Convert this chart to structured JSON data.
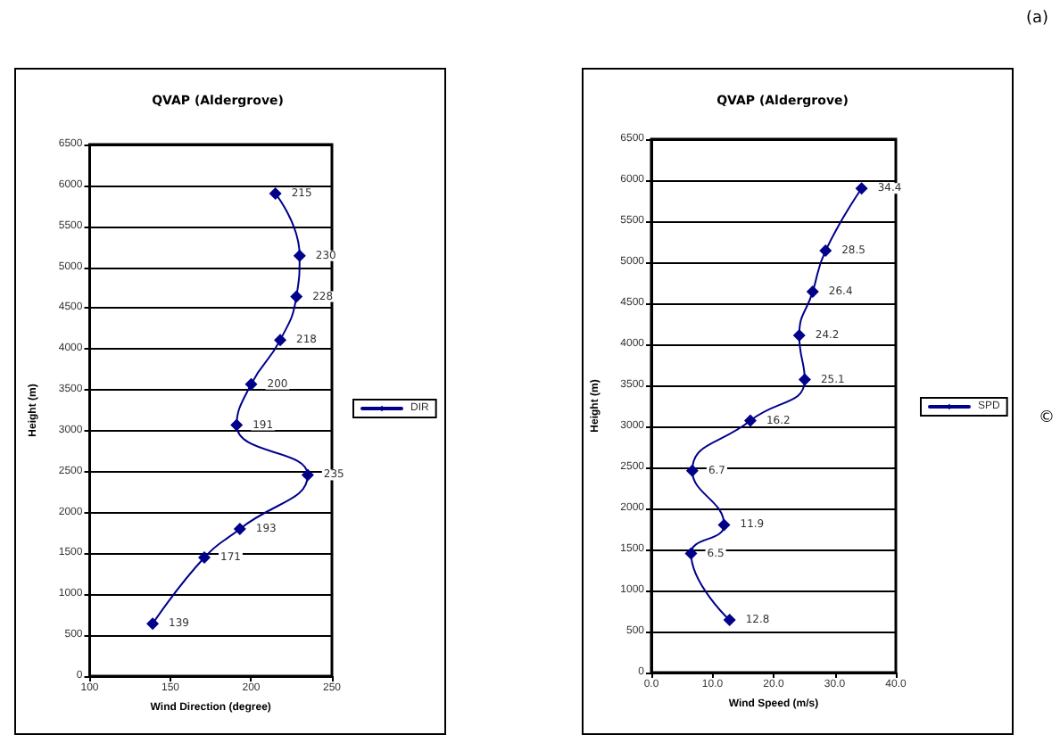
{
  "chart_data": [
    {
      "type": "line",
      "title": "QVAP (Aldergrove)",
      "xlabel": "Wind Direction (degree)",
      "ylabel": "Height (m)",
      "series": [
        {
          "name": "DIR",
          "color": "#00008b",
          "x": [
            139,
            171,
            193,
            235,
            191,
            200,
            218,
            228,
            230,
            215
          ],
          "values": [
            640,
            1450,
            1800,
            2460,
            3070,
            3570,
            4110,
            4640,
            5140,
            5900
          ]
        }
      ],
      "xlim": [
        100,
        250
      ],
      "xticks": [
        100,
        150,
        200,
        250
      ],
      "ylim": [
        0,
        6500
      ],
      "yticks": [
        0,
        500,
        1000,
        1500,
        2000,
        2500,
        3000,
        3500,
        4000,
        4500,
        5000,
        5500,
        6000,
        6500
      ],
      "grid": "y",
      "legend": "right",
      "marker": "diamond",
      "line_style": "solid",
      "annotations": [
        {
          "text": "139",
          "x": 139,
          "y": 640
        },
        {
          "text": "171",
          "x": 171,
          "y": 1450
        },
        {
          "text": "193",
          "x": 193,
          "y": 1800
        },
        {
          "text": "235",
          "x": 235,
          "y": 2460
        },
        {
          "text": "191",
          "x": 191,
          "y": 3070
        },
        {
          "text": "200",
          "x": 200,
          "y": 3570
        },
        {
          "text": "218",
          "x": 218,
          "y": 4110
        },
        {
          "text": "228",
          "x": 228,
          "y": 4640
        },
        {
          "text": "230",
          "x": 230,
          "y": 5140
        },
        {
          "text": "215",
          "x": 215,
          "y": 5900
        }
      ]
    },
    {
      "type": "line",
      "title": "QVAP (Aldergrove)",
      "xlabel": "Wind Speed (m/s)",
      "ylabel": "Height (m)",
      "series": [
        {
          "name": "SPD",
          "color": "#00008b",
          "x": [
            12.8,
            6.5,
            11.9,
            6.7,
            16.2,
            25.1,
            24.2,
            26.4,
            28.5,
            34.4
          ],
          "values": [
            640,
            1450,
            1800,
            2460,
            3070,
            3570,
            4110,
            4640,
            5140,
            5900
          ]
        }
      ],
      "xlim": [
        0,
        40
      ],
      "xticks": [
        {
          "value": 0,
          "label": "0.0"
        },
        {
          "value": 10,
          "label": "10.0"
        },
        {
          "value": 20,
          "label": "20.0"
        },
        {
          "value": 30,
          "label": "30.0"
        },
        {
          "value": 40,
          "label": "40.0"
        }
      ],
      "ylim": [
        0,
        6500
      ],
      "yticks": [
        0,
        500,
        1000,
        1500,
        2000,
        2500,
        3000,
        3500,
        4000,
        4500,
        5000,
        5500,
        6000,
        6500
      ],
      "grid": "y",
      "legend": "right",
      "marker": "diamond",
      "line_style": "solid",
      "annotations": [
        {
          "text": "12.8",
          "x": 12.8,
          "y": 640
        },
        {
          "text": "6.5",
          "x": 6.5,
          "y": 1450
        },
        {
          "text": "11.9",
          "x": 11.9,
          "y": 1800
        },
        {
          "text": "6.7",
          "x": 6.7,
          "y": 2460
        },
        {
          "text": "16.2",
          "x": 16.2,
          "y": 3070
        },
        {
          "text": "25.1",
          "x": 25.1,
          "y": 3570
        },
        {
          "text": "24.2",
          "x": 24.2,
          "y": 4110
        },
        {
          "text": "26.4",
          "x": 26.4,
          "y": 4640
        },
        {
          "text": "28.5",
          "x": 28.5,
          "y": 5140
        },
        {
          "text": "34.4",
          "x": 34.4,
          "y": 5900
        },
        "(a)",
        "©"
      ]
    }
  ]
}
